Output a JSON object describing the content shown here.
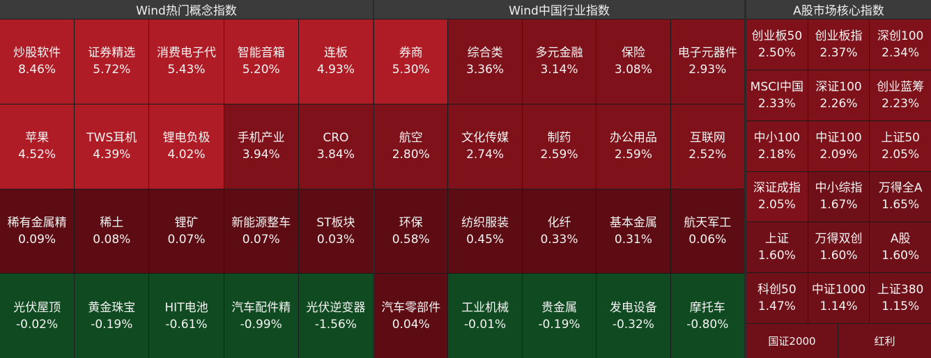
{
  "panels": {
    "concept": {
      "title": "Wind热门概念指数",
      "cells": [
        {
          "name": "炒股软件",
          "pct": "8.46%",
          "color": "#b01c26"
        },
        {
          "name": "证券精选",
          "pct": "5.72%",
          "color": "#b01c26"
        },
        {
          "name": "消费电子代",
          "pct": "5.43%",
          "color": "#b01c26"
        },
        {
          "name": "智能音箱",
          "pct": "5.20%",
          "color": "#b01c26"
        },
        {
          "name": "连板",
          "pct": "4.93%",
          "color": "#b01c26"
        },
        {
          "name": "苹果",
          "pct": "4.52%",
          "color": "#b01c26"
        },
        {
          "name": "TWS耳机",
          "pct": "4.39%",
          "color": "#b01c26"
        },
        {
          "name": "锂电负极",
          "pct": "4.02%",
          "color": "#b01c26"
        },
        {
          "name": "手机产业",
          "pct": "3.94%",
          "color": "#7e1119"
        },
        {
          "name": "CRO",
          "pct": "3.84%",
          "color": "#7e1119"
        },
        {
          "name": "稀有金属精",
          "pct": "0.09%",
          "color": "#5c0c12"
        },
        {
          "name": "稀土",
          "pct": "0.08%",
          "color": "#5c0c12"
        },
        {
          "name": "锂矿",
          "pct": "0.07%",
          "color": "#5c0c12"
        },
        {
          "name": "新能源整车",
          "pct": "0.07%",
          "color": "#5c0c12"
        },
        {
          "name": "ST板块",
          "pct": "0.03%",
          "color": "#5c0c12"
        },
        {
          "name": "光伏屋顶",
          "pct": "-0.02%",
          "color": "#0f4a20"
        },
        {
          "name": "黄金珠宝",
          "pct": "-0.19%",
          "color": "#0f4a20"
        },
        {
          "name": "HIT电池",
          "pct": "-0.61%",
          "color": "#0f4a20"
        },
        {
          "name": "汽车配件精",
          "pct": "-0.99%",
          "color": "#0f4a20"
        },
        {
          "name": "光伏逆变器",
          "pct": "-1.56%",
          "color": "#0f4a20"
        }
      ]
    },
    "industry": {
      "title": "Wind中国行业指数",
      "cells": [
        {
          "name": "券商",
          "pct": "5.30%",
          "color": "#b01c26"
        },
        {
          "name": "综合类",
          "pct": "3.36%",
          "color": "#7e1119"
        },
        {
          "name": "多元金融",
          "pct": "3.14%",
          "color": "#7e1119"
        },
        {
          "name": "保险",
          "pct": "3.08%",
          "color": "#7e1119"
        },
        {
          "name": "电子元器件",
          "pct": "2.93%",
          "color": "#7e1119"
        },
        {
          "name": "航空",
          "pct": "2.80%",
          "color": "#7e1119"
        },
        {
          "name": "文化传媒",
          "pct": "2.74%",
          "color": "#7e1119"
        },
        {
          "name": "制药",
          "pct": "2.59%",
          "color": "#7e1119"
        },
        {
          "name": "办公用品",
          "pct": "2.59%",
          "color": "#7e1119"
        },
        {
          "name": "互联网",
          "pct": "2.52%",
          "color": "#7e1119"
        },
        {
          "name": "环保",
          "pct": "0.58%",
          "color": "#5c0c12"
        },
        {
          "name": "纺织服装",
          "pct": "0.45%",
          "color": "#5c0c12"
        },
        {
          "name": "化纤",
          "pct": "0.33%",
          "color": "#5c0c12"
        },
        {
          "name": "基本金属",
          "pct": "0.31%",
          "color": "#5c0c12"
        },
        {
          "name": "航天军工",
          "pct": "0.06%",
          "color": "#5c0c12"
        },
        {
          "name": "汽车零部件",
          "pct": "0.04%",
          "color": "#5c0c12"
        },
        {
          "name": "工业机械",
          "pct": "-0.01%",
          "color": "#0f4a20"
        },
        {
          "name": "贵金属",
          "pct": "-0.19%",
          "color": "#0f4a20"
        },
        {
          "name": "发电设备",
          "pct": "-0.32%",
          "color": "#0f4a20"
        },
        {
          "name": "摩托车",
          "pct": "-0.80%",
          "color": "#0f4a20"
        }
      ]
    },
    "ashare": {
      "title": "A股市场核心指数",
      "cells": [
        {
          "name": "创业板50",
          "pct": "2.50%",
          "color": "#7e1119"
        },
        {
          "name": "创业板指",
          "pct": "2.37%",
          "color": "#7e1119"
        },
        {
          "name": "深创100",
          "pct": "2.34%",
          "color": "#7e1119"
        },
        {
          "name": "MSCI中国",
          "pct": "2.33%",
          "color": "#7e1119"
        },
        {
          "name": "深证100",
          "pct": "2.26%",
          "color": "#7e1119"
        },
        {
          "name": "创业蓝筹",
          "pct": "2.23%",
          "color": "#7e1119"
        },
        {
          "name": "中小100",
          "pct": "2.18%",
          "color": "#7e1119"
        },
        {
          "name": "中证100",
          "pct": "2.09%",
          "color": "#7e1119"
        },
        {
          "name": "上证50",
          "pct": "2.05%",
          "color": "#7e1119"
        },
        {
          "name": "深证成指",
          "pct": "2.05%",
          "color": "#7e1119"
        },
        {
          "name": "中小综指",
          "pct": "1.67%",
          "color": "#6f1018"
        },
        {
          "name": "万得全A",
          "pct": "1.65%",
          "color": "#6f1018"
        },
        {
          "name": "上证",
          "pct": "1.60%",
          "color": "#6f1018"
        },
        {
          "name": "万得双创",
          "pct": "1.60%",
          "color": "#6f1018"
        },
        {
          "name": "A股",
          "pct": "1.60%",
          "color": "#6f1018"
        },
        {
          "name": "科创50",
          "pct": "1.47%",
          "color": "#6f1018"
        },
        {
          "name": "中证1000",
          "pct": "1.14%",
          "color": "#6f1018"
        },
        {
          "name": "上证380",
          "pct": "1.15%",
          "color": "#6f1018"
        }
      ],
      "footer": [
        {
          "name": "国证2000",
          "color": "#6f1018"
        },
        {
          "name": "红利",
          "color": "#6f1018"
        }
      ]
    }
  }
}
